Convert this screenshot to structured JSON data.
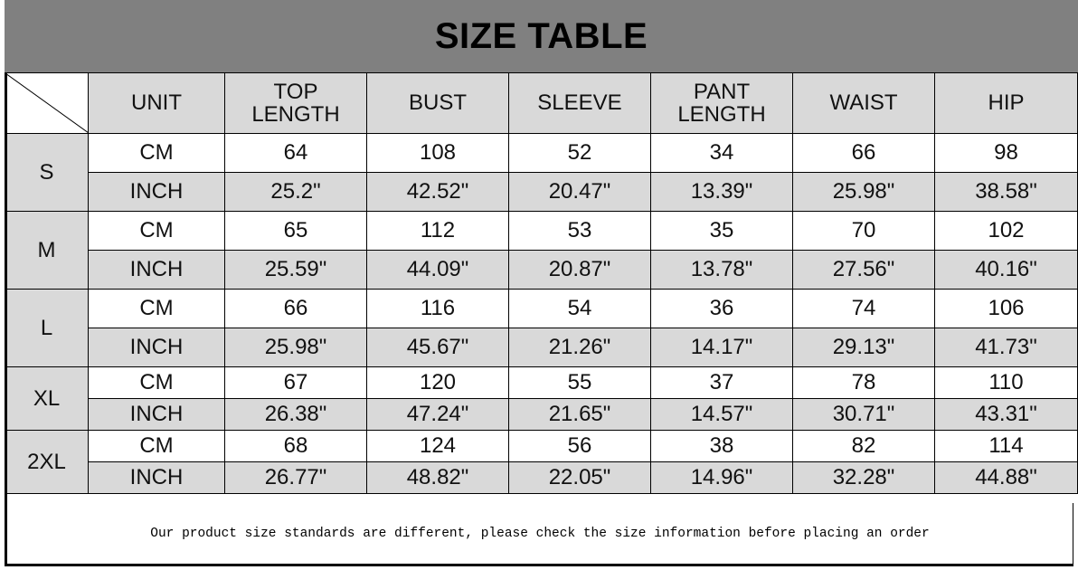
{
  "title": "SIZE TABLE",
  "headers": [
    "UNIT",
    "TOP\nLENGTH",
    "BUST",
    "SLEEVE",
    "PANT\nLENGTH",
    "WAIST",
    "HIP"
  ],
  "sizes": [
    {
      "size": "S",
      "cm": [
        "64",
        "108",
        "52",
        "34",
        "66",
        "98"
      ],
      "inch": [
        "25.2\"",
        "42.52\"",
        "20.47\"",
        "13.39\"",
        "25.98\"",
        "38.58\""
      ]
    },
    {
      "size": "M",
      "cm": [
        "65",
        "112",
        "53",
        "35",
        "70",
        "102"
      ],
      "inch": [
        "25.59\"",
        "44.09\"",
        "20.87\"",
        "13.78\"",
        "27.56\"",
        "40.16\""
      ]
    },
    {
      "size": "L",
      "cm": [
        "66",
        "116",
        "54",
        "36",
        "74",
        "106"
      ],
      "inch": [
        "25.98\"",
        "45.67\"",
        "21.26\"",
        "14.17\"",
        "29.13\"",
        "41.73\""
      ]
    },
    {
      "size": "XL",
      "cm": [
        "67",
        "120",
        "55",
        "37",
        "78",
        "110"
      ],
      "inch": [
        "26.38\"",
        "47.24\"",
        "21.65\"",
        "14.57\"",
        "30.71\"",
        "43.31\""
      ]
    },
    {
      "size": "2XL",
      "cm": [
        "68",
        "124",
        "56",
        "38",
        "82",
        "114"
      ],
      "inch": [
        "26.77\"",
        "48.82\"",
        "22.05\"",
        "14.96\"",
        "32.28\"",
        "44.88\""
      ]
    }
  ],
  "unit_cm": "CM",
  "unit_inch": "INCH",
  "footer": "Our product size standards are different, please check the size information before placing an order",
  "colors": {
    "title_bg": "#808080",
    "header_bg": "#d9d9d9"
  }
}
